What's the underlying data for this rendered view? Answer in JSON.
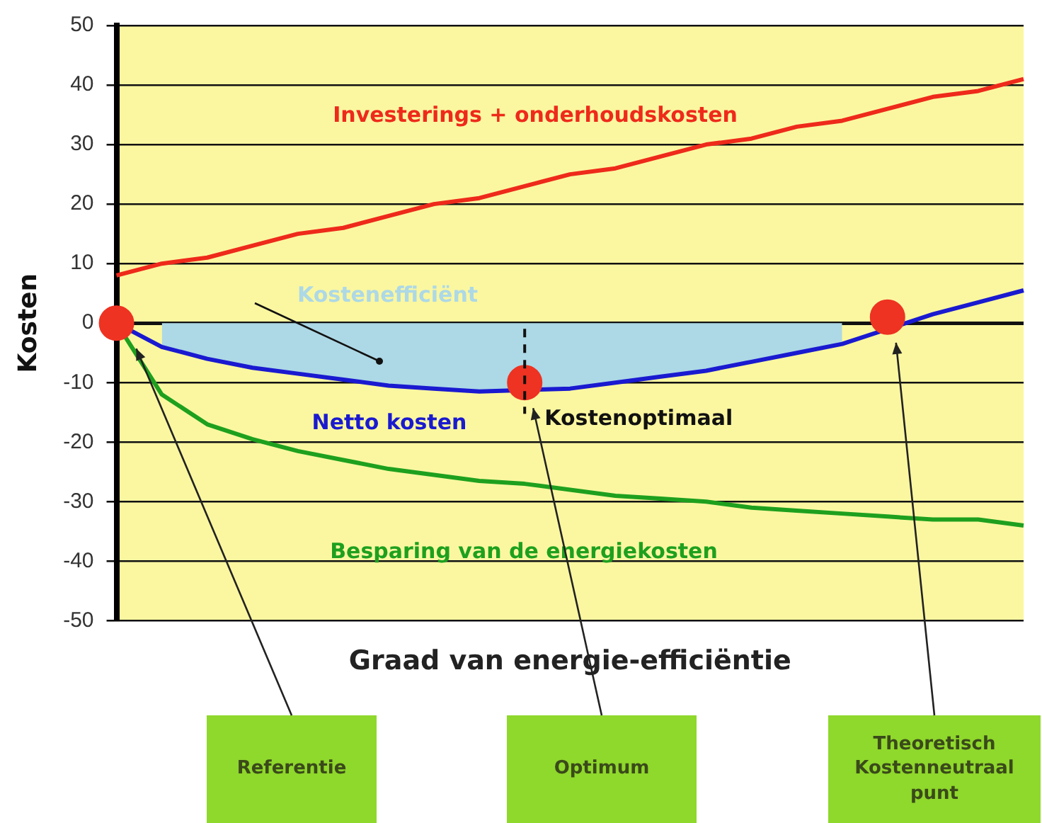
{
  "chart_data": {
    "type": "line",
    "ylabel": "Kosten",
    "xlabel": "Graad van energie-efficiëntie",
    "categories": [
      null,
      null,
      null,
      null,
      null,
      null,
      null,
      null,
      null,
      null,
      null,
      null,
      null,
      null,
      null,
      null,
      null,
      null,
      null,
      null,
      null
    ],
    "ylim": [
      -50,
      50
    ],
    "yticks": [
      -50,
      -40,
      -30,
      -20,
      -10,
      0,
      10,
      20,
      30,
      40,
      50
    ],
    "grid": "y",
    "tick_labels": "y",
    "marker": "none",
    "series": [
      {
        "type": "area",
        "name": "Kostenefficiënt",
        "color": "#add8e6",
        "values": [
          null,
          -4,
          -6,
          -7.5,
          -8.5,
          -9.5,
          -10.5,
          -11,
          -11.5,
          null,
          -11,
          -10,
          -9,
          -8,
          -6.5,
          -5,
          -3.5,
          null,
          null,
          null,
          null
        ]
      },
      {
        "name": "Investerings + onderhoudskosten",
        "color": "#ee2a1b",
        "values": [
          8,
          10,
          11,
          13,
          15,
          16,
          18,
          20,
          21,
          23,
          25,
          26,
          28,
          30,
          31,
          33,
          34,
          36,
          38,
          39,
          41
        ]
      },
      {
        "name": "Besparing van de energiekosten",
        "color": "#1ea01e",
        "values": [
          0,
          -12,
          -17,
          -19.5,
          -21.5,
          -23,
          -24.5,
          -25.5,
          -26.5,
          -27,
          -28,
          -29,
          -29.5,
          -30,
          -31,
          -31.5,
          -32,
          -32.5,
          -33,
          -33,
          -34
        ]
      },
      {
        "name": "Netto kosten",
        "color": "#1a1ad0",
        "values": [
          0,
          -4,
          -6,
          -7.5,
          -8.5,
          -9.5,
          -10.5,
          -11,
          -11.5,
          null,
          -11,
          -10,
          -9,
          -8,
          -6.5,
          -5,
          -3.5,
          null,
          1.5,
          3.5,
          5.5
        ]
      },
      {
        "type": "scatter",
        "color": "#ee3322",
        "marker": "circle",
        "values": [
          0,
          null,
          null,
          null,
          null,
          null,
          null,
          null,
          null,
          -10,
          null,
          null,
          null,
          null,
          null,
          null,
          null,
          1,
          null,
          null,
          null
        ]
      }
    ],
    "annotations": [
      "Kostenoptimaal",
      "Referentie",
      "Optimum",
      "Theoretisch Kostenneutraal punt"
    ]
  }
}
